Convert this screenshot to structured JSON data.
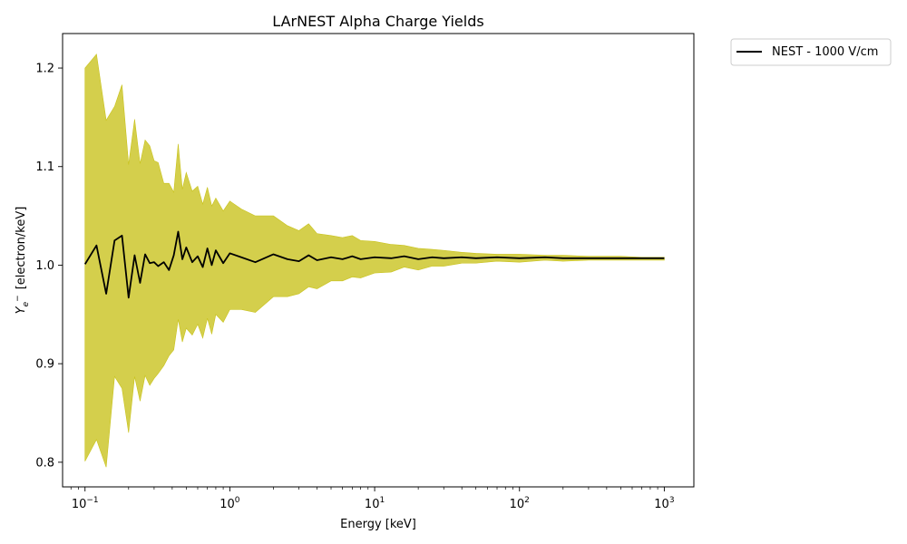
{
  "chart_data": {
    "type": "line",
    "title": "LArNEST Alpha Charge Yields",
    "xlabel": "Energy [keV]",
    "ylabel_main": "Y",
    "ylabel_sub": "e",
    "ylabel_sup": "−",
    "ylabel_rest": "[electron/keV]",
    "x_scale": "log",
    "xlim": [
      0.07,
      1600
    ],
    "ylim": [
      0.775,
      1.235
    ],
    "x_ticks": [
      {
        "value": 0.1,
        "base": "10",
        "exp": "−1"
      },
      {
        "value": 1,
        "base": "10",
        "exp": "0"
      },
      {
        "value": 10,
        "base": "10",
        "exp": "1"
      },
      {
        "value": 100,
        "base": "10",
        "exp": "2"
      },
      {
        "value": 1000,
        "base": "10",
        "exp": "3"
      }
    ],
    "y_ticks": [
      {
        "value": 0.8,
        "label": "0.8"
      },
      {
        "value": 0.9,
        "label": "0.9"
      },
      {
        "value": 1.0,
        "label": "1.0"
      },
      {
        "value": 1.1,
        "label": "1.1"
      },
      {
        "value": 1.2,
        "label": "1.2"
      }
    ],
    "grid": false,
    "legend_position": "outside-top-right",
    "series": [
      {
        "name": "NEST - 1000 V/cm",
        "color": "#000000",
        "band_color": "#c8c21a",
        "x": [
          0.1,
          0.12,
          0.14,
          0.16,
          0.18,
          0.2,
          0.22,
          0.24,
          0.26,
          0.28,
          0.3,
          0.32,
          0.35,
          0.38,
          0.41,
          0.44,
          0.47,
          0.5,
          0.55,
          0.6,
          0.65,
          0.7,
          0.75,
          0.8,
          0.9,
          1,
          1.2,
          1.5,
          2,
          2.5,
          3,
          3.5,
          4,
          5,
          6,
          7,
          8,
          10,
          13,
          16,
          20,
          25,
          30,
          40,
          50,
          70,
          100,
          150,
          200,
          300,
          500,
          700,
          1000
        ],
        "y": [
          1.001,
          1.02,
          0.971,
          1.025,
          1.03,
          0.967,
          1.01,
          0.982,
          1.011,
          1.002,
          1.003,
          0.999,
          1.003,
          0.995,
          1.01,
          1.034,
          1.006,
          1.018,
          1.003,
          1.009,
          0.998,
          1.017,
          1.0,
          1.015,
          1.002,
          1.012,
          1.008,
          1.003,
          1.011,
          1.006,
          1.004,
          1.01,
          1.005,
          1.008,
          1.006,
          1.009,
          1.006,
          1.008,
          1.007,
          1.009,
          1.006,
          1.008,
          1.007,
          1.008,
          1.007,
          1.008,
          1.007,
          1.008,
          1.007,
          1.007,
          1.007,
          1.007,
          1.007
        ],
        "upper": [
          1.2,
          1.214,
          1.147,
          1.161,
          1.183,
          1.102,
          1.148,
          1.103,
          1.127,
          1.121,
          1.106,
          1.104,
          1.083,
          1.083,
          1.074,
          1.123,
          1.077,
          1.094,
          1.075,
          1.08,
          1.062,
          1.079,
          1.06,
          1.068,
          1.055,
          1.065,
          1.057,
          1.05,
          1.05,
          1.04,
          1.035,
          1.042,
          1.032,
          1.03,
          1.028,
          1.03,
          1.025,
          1.024,
          1.021,
          1.02,
          1.017,
          1.016,
          1.015,
          1.013,
          1.012,
          1.011,
          1.011,
          1.01,
          1.01,
          1.009,
          1.009,
          1.008,
          1.008
        ],
        "lower": [
          0.801,
          0.823,
          0.795,
          0.887,
          0.875,
          0.83,
          0.887,
          0.862,
          0.888,
          0.878,
          0.885,
          0.89,
          0.898,
          0.908,
          0.914,
          0.945,
          0.922,
          0.936,
          0.929,
          0.94,
          0.926,
          0.946,
          0.93,
          0.95,
          0.942,
          0.955,
          0.955,
          0.952,
          0.968,
          0.968,
          0.971,
          0.978,
          0.976,
          0.984,
          0.984,
          0.988,
          0.987,
          0.992,
          0.993,
          0.998,
          0.995,
          0.999,
          0.999,
          1.002,
          1.002,
          1.004,
          1.003,
          1.005,
          1.004,
          1.005,
          1.005,
          1.005,
          1.005
        ]
      }
    ]
  }
}
